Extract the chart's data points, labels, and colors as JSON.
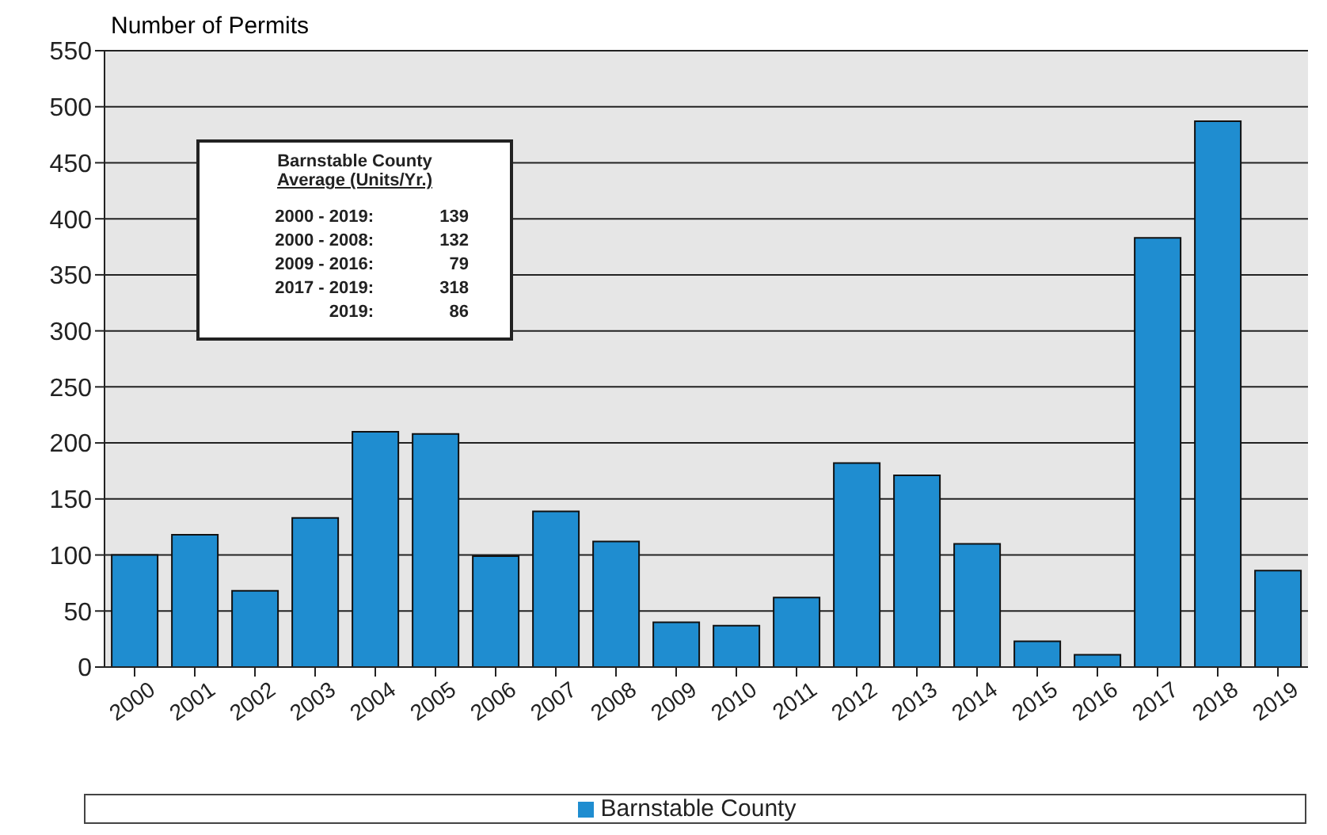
{
  "chart_data": {
    "type": "bar",
    "ylabel": "Number of Permits",
    "categories": [
      "2000",
      "2001",
      "2002",
      "2003",
      "2004",
      "2005",
      "2006",
      "2007",
      "2008",
      "2009",
      "2010",
      "2011",
      "2012",
      "2013",
      "2014",
      "2015",
      "2016",
      "2017",
      "2018",
      "2019"
    ],
    "series": [
      {
        "name": "Barnstable County",
        "color": "#1f8dd0",
        "values": [
          100,
          118,
          68,
          133,
          210,
          208,
          99,
          139,
          112,
          40,
          37,
          62,
          182,
          171,
          110,
          23,
          11,
          383,
          487,
          86
        ]
      }
    ],
    "ylim": [
      0,
      550
    ],
    "yticks": [
      0,
      50,
      100,
      150,
      200,
      250,
      300,
      350,
      400,
      450,
      500,
      550
    ],
    "grid": "y",
    "legend": "bottom",
    "annotations": [
      "Barnstable County",
      "Average (Units/Yr.)",
      "2000 - 2019:",
      "139",
      "2000 - 2008:",
      "132",
      "2009 - 2016:",
      "79",
      "2017 - 2019:",
      "318",
      "2019:",
      "86"
    ]
  }
}
